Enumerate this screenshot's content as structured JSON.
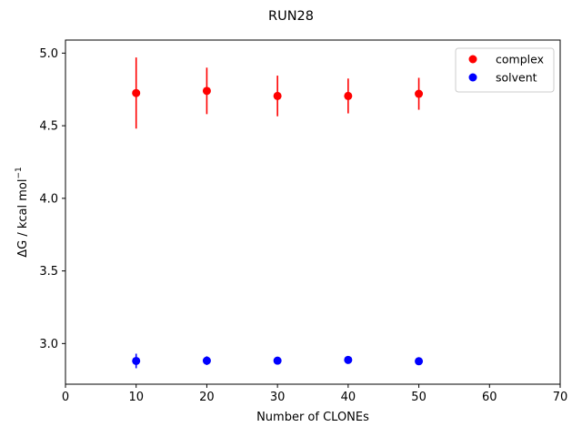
{
  "chart_data": {
    "type": "scatter",
    "title": "RUN28",
    "xlabel": "Number of CLONEs",
    "ylabel": "ΔG / kcal mol",
    "ylabel_sup": "−1",
    "xlim": [
      0,
      70
    ],
    "ylim": [
      2.72,
      5.09
    ],
    "xticks": [
      0,
      10,
      20,
      30,
      40,
      50,
      60,
      70
    ],
    "yticks": [
      3.0,
      3.5,
      4.0,
      4.5,
      5.0
    ],
    "xtick_labels": [
      "0",
      "10",
      "20",
      "30",
      "40",
      "50",
      "60",
      "70"
    ],
    "ytick_labels": [
      "3.0",
      "3.5",
      "4.0",
      "4.5",
      "5.0"
    ],
    "grid": false,
    "legend_position": "top-right",
    "series": [
      {
        "name": "complex",
        "color": "#ff0000",
        "x": [
          10,
          20,
          30,
          40,
          50
        ],
        "y": [
          4.725,
          4.74,
          4.705,
          4.705,
          4.72
        ],
        "err": [
          0.245,
          0.16,
          0.14,
          0.12,
          0.11
        ]
      },
      {
        "name": "solvent",
        "color": "#0000ff",
        "x": [
          10,
          20,
          30,
          40,
          50
        ],
        "y": [
          2.88,
          2.882,
          2.882,
          2.887,
          2.878
        ],
        "err": [
          0.05,
          0.03,
          0.015,
          0.01,
          0.01
        ]
      }
    ]
  }
}
